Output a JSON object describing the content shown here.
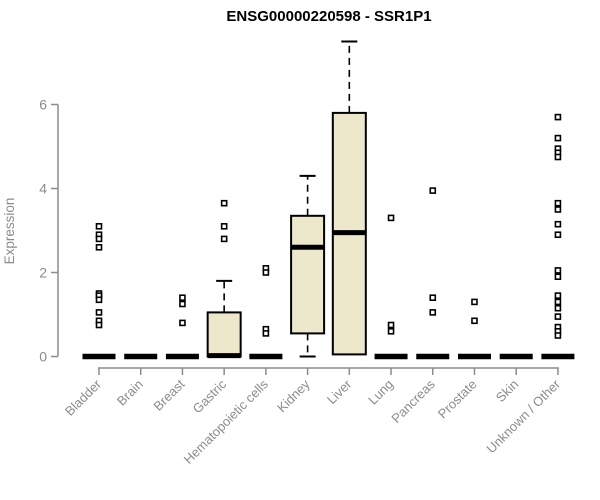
{
  "chart_data": {
    "type": "box",
    "title": "ENSG00000220598 - SSR1P1",
    "ylabel": "Expression",
    "xlabel": "",
    "ylim": [
      0,
      6
    ],
    "yticks": [
      0,
      2,
      4,
      6
    ],
    "grid": false,
    "legend": "none",
    "categories": [
      "Bladder",
      "Brain",
      "Breast",
      "Gastric",
      "Hematopoietic cells",
      "Kidney",
      "Liver",
      "Lung",
      "Pancreas",
      "Prostate",
      "Skin",
      "Unknown / Other"
    ],
    "series": [
      {
        "name": "Bladder",
        "low": 0,
        "q1": 0,
        "median": 0,
        "q3": 0,
        "high": 0,
        "outliers": [
          3.1,
          2.9,
          2.8,
          2.6,
          1.5,
          1.45,
          1.35,
          1.05,
          0.85,
          0.75
        ]
      },
      {
        "name": "Brain",
        "low": 0,
        "q1": 0,
        "median": 0,
        "q3": 0,
        "high": 0,
        "outliers": []
      },
      {
        "name": "Breast",
        "low": 0,
        "q1": 0,
        "median": 0,
        "q3": 0,
        "high": 0,
        "outliers": [
          1.4,
          1.25,
          0.8
        ]
      },
      {
        "name": "Gastric",
        "low": 0,
        "q1": 0,
        "median": 0.02,
        "q3": 1.05,
        "high": 1.8,
        "outliers": [
          3.65,
          3.1,
          2.8
        ]
      },
      {
        "name": "Hematopoietic cells",
        "low": 0,
        "q1": 0,
        "median": 0,
        "q3": 0,
        "high": 0,
        "outliers": [
          2.1,
          2.0,
          0.65,
          0.55
        ]
      },
      {
        "name": "Kidney",
        "low": 0,
        "q1": 0.55,
        "median": 2.6,
        "q3": 3.35,
        "high": 4.3,
        "outliers": []
      },
      {
        "name": "Liver",
        "low": 0.05,
        "q1": 0.05,
        "median": 2.95,
        "q3": 5.8,
        "high": 7.5,
        "outliers": []
      },
      {
        "name": "Lung",
        "low": 0,
        "q1": 0,
        "median": 0,
        "q3": 0,
        "high": 0,
        "outliers": [
          3.3,
          0.75,
          0.6
        ]
      },
      {
        "name": "Pancreas",
        "low": 0,
        "q1": 0,
        "median": 0,
        "q3": 0,
        "high": 0,
        "outliers": [
          3.95,
          1.4,
          1.05
        ]
      },
      {
        "name": "Prostate",
        "low": 0,
        "q1": 0,
        "median": 0,
        "q3": 0,
        "high": 0,
        "outliers": [
          1.3,
          0.85
        ]
      },
      {
        "name": "Skin",
        "low": 0,
        "q1": 0,
        "median": 0,
        "q3": 0,
        "high": 0,
        "outliers": []
      },
      {
        "name": "Unknown / Other",
        "low": 0,
        "q1": 0,
        "median": 0,
        "q3": 0,
        "high": 0,
        "outliers": [
          5.7,
          5.2,
          4.95,
          4.85,
          4.75,
          3.65,
          3.5,
          3.15,
          2.9,
          2.05,
          1.9,
          1.45,
          1.3,
          1.15,
          0.95,
          0.7,
          0.6,
          0.5
        ]
      }
    ],
    "colors": {
      "box_fill": "#EDE7CB",
      "box_stroke": "#000000",
      "median": "#000000",
      "whisker": "#000000",
      "outlier_stroke": "#000000",
      "outlier_fill": "#ffffff",
      "axis": "#8C8C8C",
      "tick_label": "#8C8C8C",
      "title": "#000000",
      "background": "#ffffff"
    }
  }
}
